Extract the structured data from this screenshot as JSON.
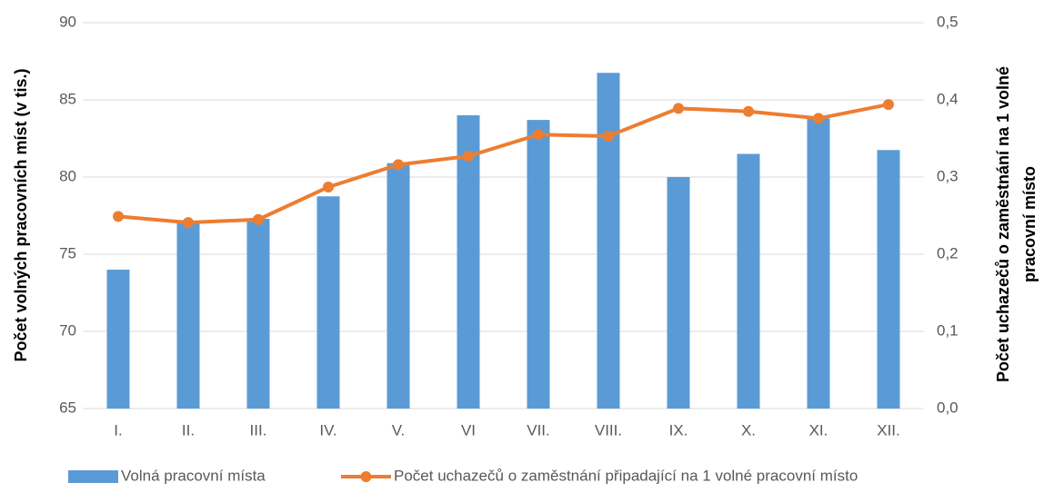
{
  "chart_data": {
    "type": "bar_line",
    "categories": [
      "I.",
      "II.",
      "III.",
      "IV.",
      "V.",
      "VI",
      "VII.",
      "VIII.",
      "IX.",
      "X.",
      "XI.",
      "XII."
    ],
    "series": [
      {
        "name": "Volná pracovní místa",
        "color": "#5b9bd5",
        "type": "bar",
        "values": [
          74.0,
          77.05,
          77.3,
          78.75,
          80.9,
          84.0,
          83.7,
          86.75,
          80.0,
          81.5,
          83.8,
          81.75
        ]
      },
      {
        "name": "Počet uchazečů o zaměstnání připadající na 1 volné pracovní místo",
        "color": "#ed7d31",
        "type": "line",
        "axis": "y2",
        "values": [
          0.249,
          0.241,
          0.245,
          0.287,
          0.316,
          0.327,
          0.355,
          0.353,
          0.389,
          0.385,
          0.376,
          0.394
        ]
      }
    ],
    "ylabel": "Počet volných pracovních míst (v tis.)",
    "y2label_lines": [
      "Počet uchazečů o zaměstnání na 1 volné",
      "pracovní místo"
    ],
    "ylim": [
      65,
      90
    ],
    "yticks": [
      65,
      70,
      75,
      80,
      85,
      90
    ],
    "y2lim": [
      0,
      0.5
    ],
    "y2ticks": [
      {
        "value": 0,
        "label": "0,0"
      },
      {
        "value": 0.1,
        "label": "0,1"
      },
      {
        "value": 0.2,
        "label": "0,2"
      },
      {
        "value": 0.3,
        "label": "0,3"
      },
      {
        "value": 0.4,
        "label": "0,4"
      },
      {
        "value": 0.5,
        "label": "0,5"
      }
    ],
    "grid": true,
    "legend": "bottom"
  }
}
